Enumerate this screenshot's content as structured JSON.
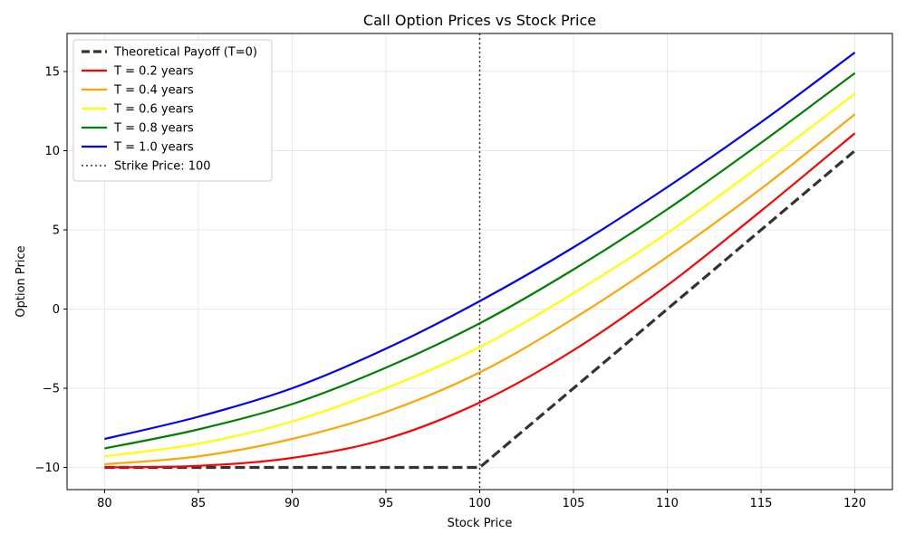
{
  "chart_data": {
    "type": "line",
    "title": "Call Option Prices vs Stock Price",
    "xlabel": "Stock Price",
    "ylabel": "Option Price",
    "xlim": [
      78,
      122
    ],
    "ylim": [
      -11.4,
      17.4
    ],
    "xticks": [
      80,
      85,
      90,
      95,
      100,
      105,
      110,
      115,
      120
    ],
    "yticks": [
      -10,
      -5,
      0,
      5,
      10,
      15
    ],
    "grid": true,
    "legend_position": "top-left",
    "series": [
      {
        "name": "Theoretical Payoff (T=0)",
        "color": "#333333",
        "style": "dashed",
        "x": [
          80,
          100,
          120
        ],
        "y": [
          -10,
          -10,
          10
        ]
      },
      {
        "name": "T = 0.2 years",
        "color": "#ff0000",
        "style": "solid",
        "x": [
          80,
          85,
          90,
          95,
          100,
          105,
          110,
          115,
          120
        ],
        "y": [
          -10.0,
          -9.9,
          -9.4,
          -8.2,
          -5.9,
          -2.6,
          1.5,
          6.2,
          11.1
        ]
      },
      {
        "name": "T = 0.4 years",
        "color": "#ffa500",
        "style": "solid",
        "x": [
          80,
          85,
          90,
          95,
          100,
          105,
          110,
          115,
          120
        ],
        "y": [
          -9.8,
          -9.3,
          -8.2,
          -6.5,
          -4.0,
          -0.6,
          3.3,
          7.6,
          12.3
        ]
      },
      {
        "name": "T = 0.6 years",
        "color": "#ffff00",
        "style": "solid",
        "x": [
          80,
          85,
          90,
          95,
          100,
          105,
          110,
          115,
          120
        ],
        "y": [
          -9.3,
          -8.5,
          -7.1,
          -5.0,
          -2.4,
          1.0,
          4.8,
          9.1,
          13.6
        ]
      },
      {
        "name": "T = 0.8 years",
        "color": "#008000",
        "style": "solid",
        "x": [
          80,
          85,
          90,
          95,
          100,
          105,
          110,
          115,
          120
        ],
        "y": [
          -8.8,
          -7.6,
          -6.0,
          -3.7,
          -0.9,
          2.5,
          6.3,
          10.5,
          14.9
        ]
      },
      {
        "name": "T = 1.0 years",
        "color": "#0000ff",
        "style": "solid",
        "x": [
          80,
          85,
          90,
          95,
          100,
          105,
          110,
          115,
          120
        ],
        "y": [
          -8.2,
          -6.8,
          -5.0,
          -2.5,
          0.5,
          3.9,
          7.7,
          11.8,
          16.2
        ]
      }
    ],
    "vline": {
      "name": "Strike Price: 100",
      "x": 100,
      "color": "#333333",
      "style": "dotted"
    }
  }
}
